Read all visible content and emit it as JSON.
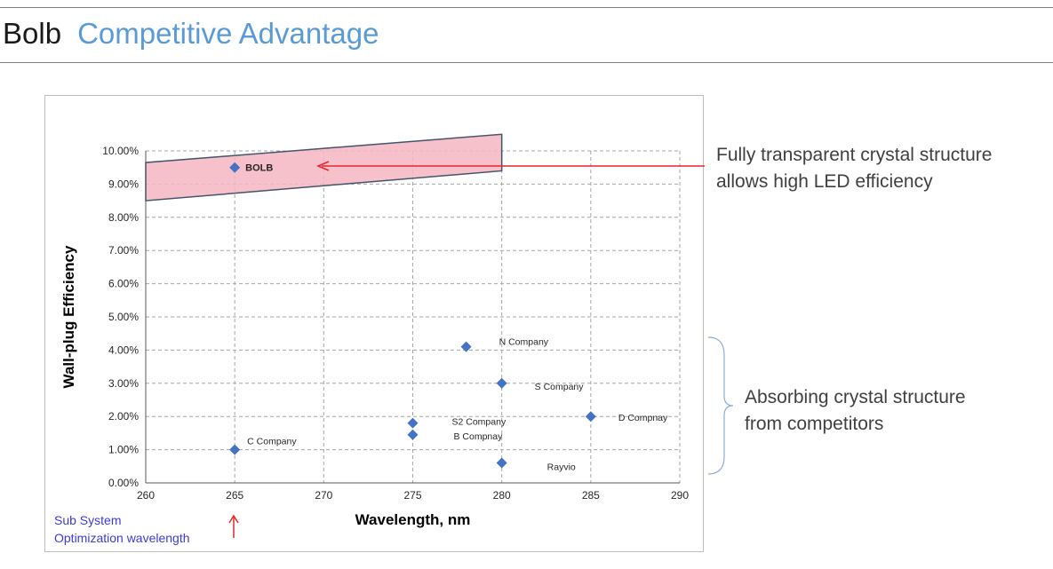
{
  "header": {
    "brand": "Bolb",
    "section": "Competitive Advantage"
  },
  "annotations": {
    "top": [
      "Fully transparent crystal structure",
      "allows high LED efficiency"
    ],
    "bottom": [
      "Absorbing crystal structure",
      "from competitors"
    ],
    "subsystem": [
      "Sub System",
      "Optimization wavelength"
    ]
  },
  "colors": {
    "accent": "#5b9bd5",
    "marker": "#4472c4",
    "highlight": "#f4b6c2",
    "arrow": "#e8262c",
    "subsystem_text": "#3b3bdc"
  },
  "chart_data": {
    "type": "scatter",
    "xlabel": "Wavelength, nm",
    "ylabel": "Wall-plug Efficiency",
    "xlim": [
      260,
      290
    ],
    "ylim": [
      0,
      10
    ],
    "x_ticks": [
      260,
      265,
      270,
      275,
      280,
      285,
      290
    ],
    "x_tick_labels": [
      "260",
      "265",
      "270",
      "275",
      "280",
      "285",
      "290"
    ],
    "y_ticks": [
      0,
      1,
      2,
      3,
      4,
      5,
      6,
      7,
      8,
      9,
      10
    ],
    "y_tick_labels": [
      "0.00%",
      "1.00%",
      "2.00%",
      "3.00%",
      "4.00%",
      "5.00%",
      "6.00%",
      "7.00%",
      "8.00%",
      "9.00%",
      "10.00%"
    ],
    "grid": true,
    "points": [
      {
        "label": "BOLB",
        "x": 265,
        "y": 9.5,
        "bold": true
      },
      {
        "label": "N Company",
        "x": 278,
        "y": 4.1
      },
      {
        "label": "S Company",
        "x": 280,
        "y": 3.0
      },
      {
        "label": "D Compnay",
        "x": 285,
        "y": 2.0
      },
      {
        "label": "S2 Company",
        "x": 275,
        "y": 1.8
      },
      {
        "label": "B Compnay",
        "x": 275,
        "y": 1.45
      },
      {
        "label": "C Company",
        "x": 265,
        "y": 1.0
      },
      {
        "label": "Rayvio",
        "x": 280,
        "y": 0.6
      }
    ],
    "highlight_region": [
      [
        260,
        8.5
      ],
      [
        260,
        9.65
      ],
      [
        280,
        10.5
      ],
      [
        280,
        9.4
      ]
    ]
  }
}
